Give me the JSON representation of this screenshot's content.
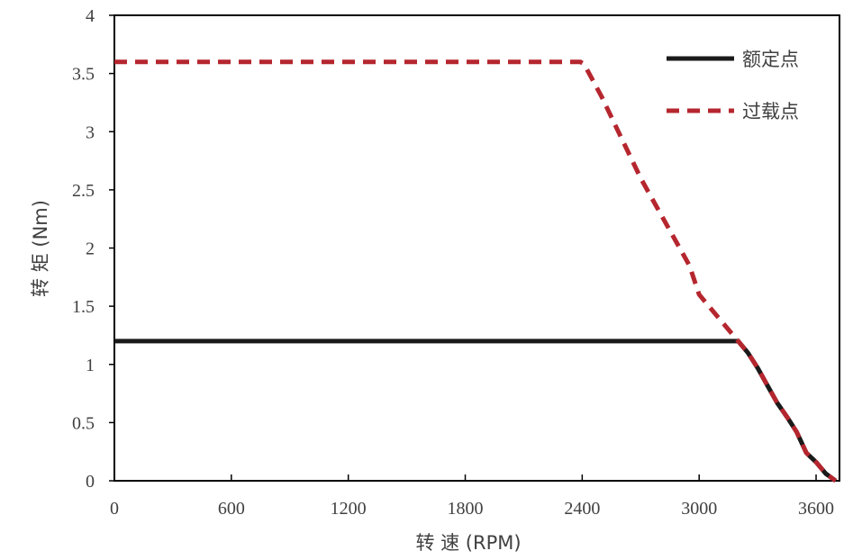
{
  "chart_data": {
    "type": "line",
    "xlabel": "转 速 (RPM)",
    "ylabel": "转 矩 (Nm)",
    "xlim": [
      0,
      3720
    ],
    "ylim": [
      0,
      4
    ],
    "xticks": [
      0,
      600,
      1200,
      1800,
      2400,
      3000,
      3600
    ],
    "yticks": [
      0,
      0.5,
      1,
      1.5,
      2,
      2.5,
      3,
      3.5,
      4
    ],
    "ytick_labels": [
      "0",
      "0.5",
      "1",
      "1.5",
      "2",
      "2.5",
      "3",
      "3.5",
      "4"
    ],
    "grid": false,
    "legend_position": "top-right",
    "series": [
      {
        "name": "额定点",
        "color": "#1a1a1a",
        "style": "solid",
        "x": [
          0,
          3150,
          3200,
          3250,
          3300,
          3350,
          3400,
          3450,
          3500,
          3550,
          3600,
          3650,
          3700
        ],
        "y": [
          1.2,
          1.2,
          1.2,
          1.1,
          0.97,
          0.82,
          0.67,
          0.55,
          0.42,
          0.24,
          0.16,
          0.06,
          0
        ]
      },
      {
        "name": "过载点",
        "color": "#b5262e",
        "style": "dashed",
        "x": [
          0,
          2390,
          2410,
          2500,
          2600,
          2700,
          2800,
          2900,
          2950,
          3000,
          3100,
          3200,
          3250,
          3300,
          3350,
          3400,
          3450,
          3500,
          3550,
          3600,
          3650,
          3700
        ],
        "y": [
          3.6,
          3.6,
          3.58,
          3.3,
          2.95,
          2.6,
          2.3,
          2.0,
          1.85,
          1.6,
          1.4,
          1.2,
          1.1,
          0.97,
          0.82,
          0.67,
          0.55,
          0.42,
          0.24,
          0.16,
          0.06,
          0
        ]
      }
    ]
  }
}
